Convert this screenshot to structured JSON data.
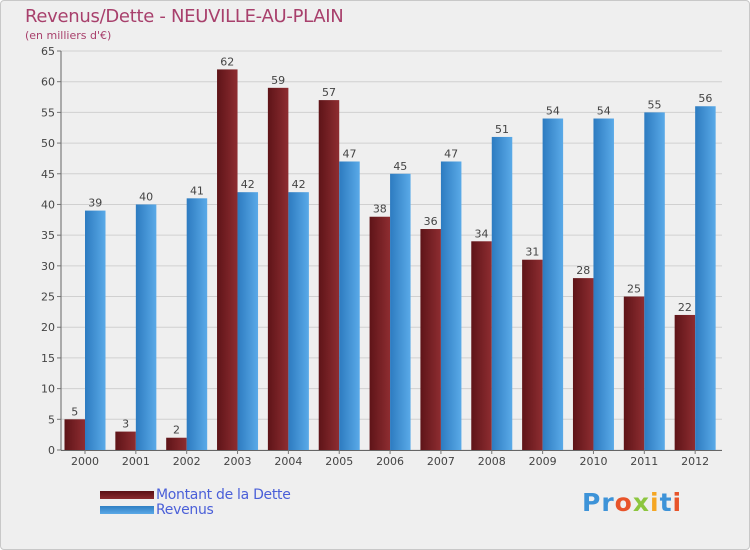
{
  "chart_data": {
    "type": "bar",
    "title": "Revenus/Dette - NEUVILLE-AU-PLAIN",
    "subtitle": "(en milliers d'€)",
    "categories": [
      "2000",
      "2001",
      "2002",
      "2003",
      "2004",
      "2005",
      "2006",
      "2007",
      "2008",
      "2009",
      "2010",
      "2011",
      "2012"
    ],
    "series": [
      {
        "name": "Montant de la Dette",
        "color": "#7a1f24",
        "values": [
          5,
          3,
          2,
          62,
          59,
          57,
          38,
          36,
          34,
          31,
          28,
          25,
          22
        ]
      },
      {
        "name": "Revenus",
        "color": "#3d93d8",
        "values": [
          39,
          40,
          41,
          42,
          42,
          47,
          45,
          47,
          51,
          54,
          54,
          55,
          56
        ]
      }
    ],
    "ylim": [
      0,
      65
    ],
    "yticks": [
      0,
      5,
      10,
      15,
      20,
      25,
      30,
      35,
      40,
      45,
      50,
      55,
      60,
      65
    ],
    "grid": true,
    "legend_position": "bottom-left"
  },
  "logo": {
    "text": "Proxiti",
    "colors": [
      "#3d93d8",
      "#3d93d8",
      "#e8542a",
      "#8cc63f",
      "#f5a623",
      "#3d93d8",
      "#e8542a"
    ]
  }
}
